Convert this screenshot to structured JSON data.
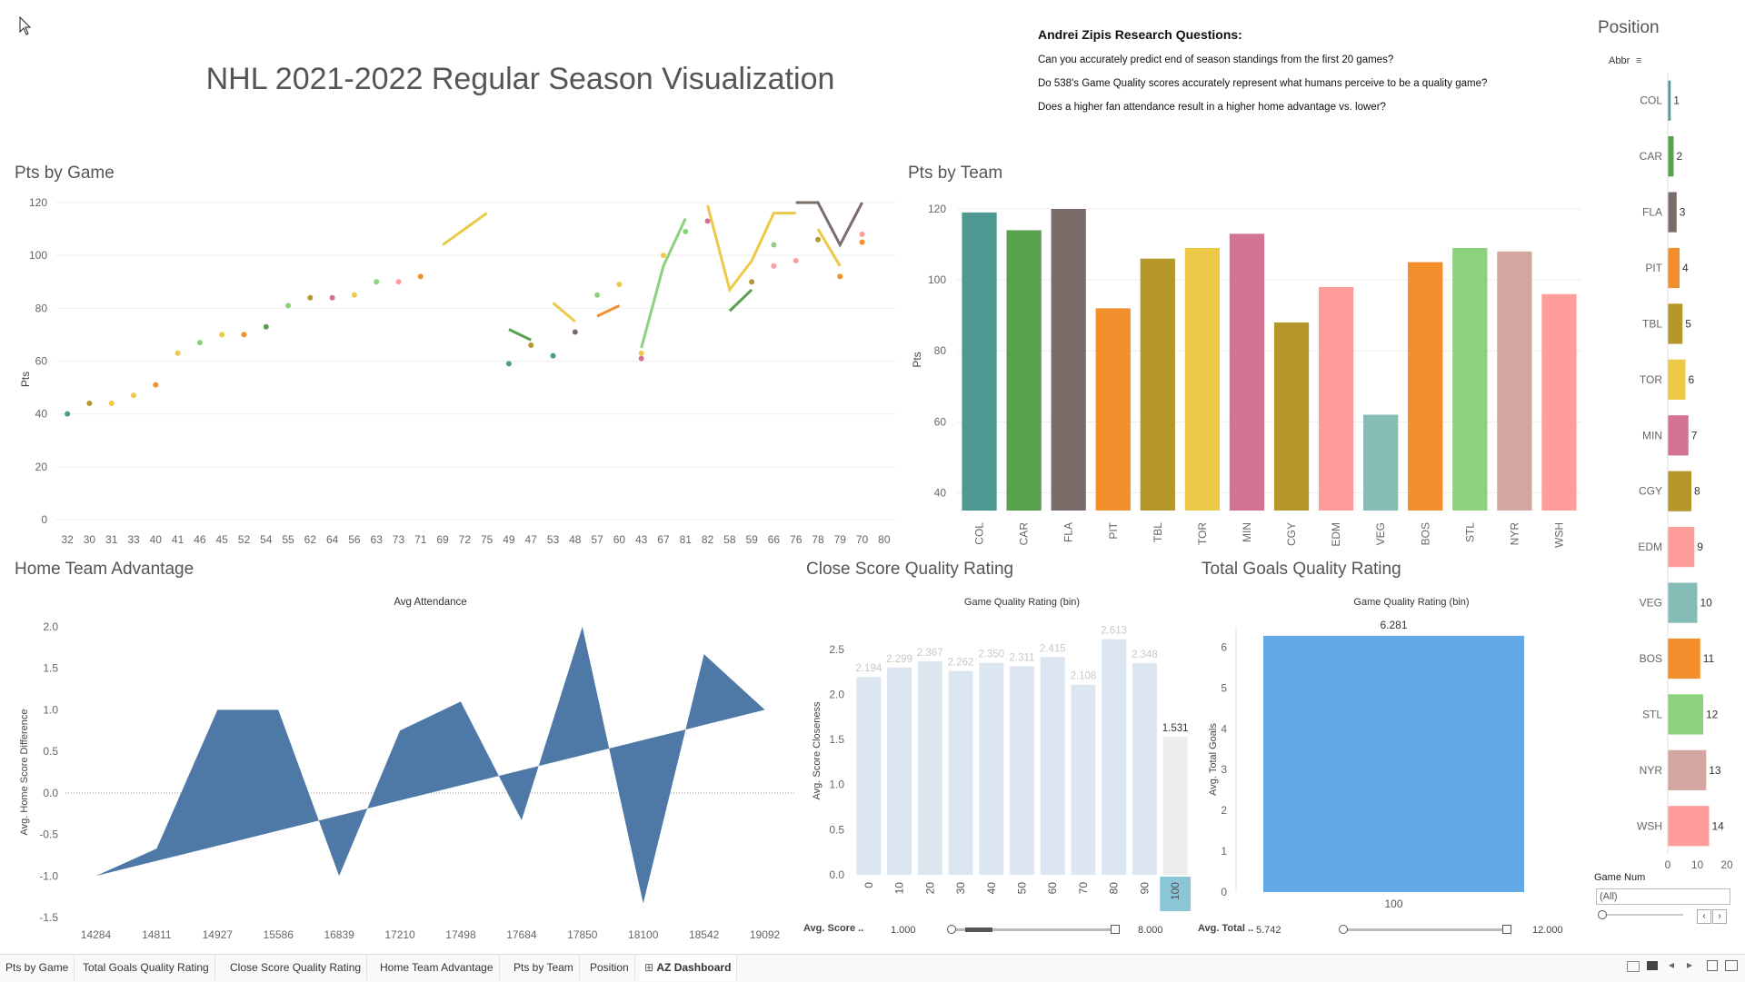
{
  "dashboard_title": "NHL 2021-2022 Regular Season Visualization",
  "research": {
    "heading": "Andrei Zipis Research Questions:",
    "questions": [
      "Can you accurately predict end of season standings from the first 20 games?",
      "Do 538's Game Quality scores accurately represent what humans perceive to be a quality game?",
      "Does a higher fan attendance result in a higher home advantage vs. lower?"
    ]
  },
  "colors": {
    "COL": "#4e9a93",
    "CAR": "#59a14f",
    "FLA": "#7a6d69",
    "PIT": "#f28e2b",
    "TBL": "#b5972c",
    "TOR": "#edc948",
    "MIN": "#d37295",
    "CGY": "#b5972c",
    "EDM": "#ff9d9a",
    "VEG": "#86bcb6",
    "BOS": "#f28e2b",
    "STL": "#8cd17d",
    "NYR": "#d4a6a0",
    "WSH": "#ff9d9a",
    "area": "#4e79a7",
    "bars_light": "#dce6f1",
    "goals_bar": "#63a9e8"
  },
  "chart_data": [
    {
      "id": "pts_by_game",
      "type": "line",
      "title": "Pts by Game",
      "ylabel": "Pts",
      "ylim": [
        0,
        120
      ],
      "yticks": [
        0,
        20,
        40,
        60,
        80,
        100,
        120
      ],
      "categories": [
        "32",
        "30",
        "31",
        "33",
        "40",
        "41",
        "46",
        "45",
        "52",
        "54",
        "55",
        "62",
        "64",
        "56",
        "63",
        "73",
        "71",
        "69",
        "72",
        "75",
        "49",
        "47",
        "53",
        "48",
        "57",
        "60",
        "43",
        "67",
        "81",
        "82",
        "58",
        "59",
        "66",
        "76",
        "78",
        "79",
        "70",
        "80"
      ],
      "series": [
        {
          "team": "COL",
          "points": [
            [
              0,
              40
            ]
          ]
        },
        {
          "team": "CGY",
          "points": [
            [
              1,
              44
            ]
          ]
        },
        {
          "team": "TOR",
          "points": [
            [
              2,
              44
            ]
          ]
        },
        {
          "team": "TOR",
          "points": [
            [
              3,
              47
            ]
          ]
        },
        {
          "team": "PIT",
          "points": [
            [
              4,
              51
            ]
          ]
        },
        {
          "team": "TOR",
          "points": [
            [
              5,
              63
            ]
          ]
        },
        {
          "team": "STL",
          "points": [
            [
              6,
              67
            ]
          ]
        },
        {
          "team": "TOR",
          "points": [
            [
              7,
              70
            ]
          ]
        },
        {
          "team": "PIT",
          "points": [
            [
              8,
              70
            ]
          ]
        },
        {
          "team": "CAR",
          "points": [
            [
              9,
              73
            ]
          ]
        },
        {
          "team": "STL",
          "points": [
            [
              10,
              81
            ]
          ]
        },
        {
          "team": "CGY",
          "points": [
            [
              11,
              84
            ]
          ]
        },
        {
          "team": "MIN",
          "points": [
            [
              12,
              84
            ]
          ]
        },
        {
          "team": "TOR",
          "points": [
            [
              13,
              85
            ]
          ]
        },
        {
          "team": "STL",
          "points": [
            [
              14,
              90
            ]
          ]
        },
        {
          "team": "EDM",
          "points": [
            [
              15,
              90
            ]
          ]
        },
        {
          "team": "PIT",
          "points": [
            [
              16,
              92
            ]
          ]
        },
        {
          "team": "TOR",
          "points": [
            [
              17,
              104
            ],
            [
              19,
              116
            ]
          ]
        },
        {
          "team": "COL",
          "points": [
            [
              20,
              59
            ]
          ]
        },
        {
          "team": "CAR",
          "points": [
            [
              20,
              72
            ],
            [
              21,
              68
            ]
          ]
        },
        {
          "team": "CGY",
          "points": [
            [
              21,
              66
            ]
          ]
        },
        {
          "team": "COL",
          "points": [
            [
              22,
              62
            ]
          ]
        },
        {
          "team": "TOR",
          "points": [
            [
              22,
              82
            ],
            [
              23,
              75
            ]
          ]
        },
        {
          "team": "FLA",
          "points": [
            [
              23,
              71
            ]
          ]
        },
        {
          "team": "STL",
          "points": [
            [
              24,
              85
            ]
          ]
        },
        {
          "team": "PIT",
          "points": [
            [
              24,
              77
            ],
            [
              25,
              81
            ]
          ]
        },
        {
          "team": "TOR",
          "points": [
            [
              25,
              89
            ]
          ]
        },
        {
          "team": "MIN",
          "points": [
            [
              26,
              61
            ]
          ]
        },
        {
          "team": "TOR",
          "points": [
            [
              26,
              63
            ]
          ]
        },
        {
          "team": "STL",
          "points": [
            [
              26,
              65
            ],
            [
              27,
              96
            ],
            [
              28,
              114
            ]
          ]
        },
        {
          "team": "TOR",
          "points": [
            [
              27,
              100
            ]
          ]
        },
        {
          "team": "STL",
          "points": [
            [
              28,
              109
            ]
          ]
        },
        {
          "team": "MIN",
          "points": [
            [
              29,
              113
            ]
          ]
        },
        {
          "team": "TOR",
          "points": [
            [
              29,
              119
            ],
            [
              30,
              87
            ],
            [
              31,
              98
            ],
            [
              32,
              116
            ],
            [
              33,
              116
            ]
          ]
        },
        {
          "team": "CAR",
          "points": [
            [
              30,
              79
            ],
            [
              31,
              87
            ]
          ]
        },
        {
          "team": "CGY",
          "points": [
            [
              31,
              90
            ]
          ]
        },
        {
          "team": "STL",
          "points": [
            [
              32,
              104
            ]
          ]
        },
        {
          "team": "EDM",
          "points": [
            [
              32,
              96
            ]
          ]
        },
        {
          "team": "EDM",
          "points": [
            [
              33,
              98
            ]
          ]
        },
        {
          "team": "FLA",
          "points": [
            [
              33,
              120
            ],
            [
              34,
              120
            ],
            [
              35,
              104
            ],
            [
              36,
              120
            ]
          ]
        },
        {
          "team": "TOR",
          "points": [
            [
              34,
              110
            ],
            [
              35,
              96
            ]
          ]
        },
        {
          "team": "CGY",
          "points": [
            [
              34,
              106
            ]
          ]
        },
        {
          "team": "PIT",
          "points": [
            [
              35,
              92
            ]
          ]
        },
        {
          "team": "PIT",
          "points": [
            [
              36,
              105
            ]
          ]
        },
        {
          "team": "EDM",
          "points": [
            [
              36,
              108
            ]
          ]
        }
      ]
    },
    {
      "id": "pts_by_team",
      "type": "bar",
      "title": "Pts by Team",
      "ylabel": "Pts",
      "ylim": [
        35,
        120
      ],
      "yticks": [
        40,
        60,
        80,
        100,
        120
      ],
      "categories": [
        "COL",
        "CAR",
        "FLA",
        "PIT",
        "TBL",
        "TOR",
        "MIN",
        "CGY",
        "EDM",
        "VEG",
        "BOS",
        "STL",
        "NYR",
        "WSH"
      ],
      "values": [
        119,
        114,
        120,
        92,
        106,
        109,
        113,
        88,
        98,
        62,
        105,
        109,
        108,
        96
      ]
    },
    {
      "id": "home_team_advantage",
      "type": "area",
      "title": "Home Team Advantage",
      "header": "Avg Attendance",
      "ylabel": "Avg. Home Score Difference",
      "ylim": [
        -1.5,
        2.0
      ],
      "yticks": [
        "2.0",
        "1.5",
        "1.0",
        "0.5",
        "0.0",
        "-0.5",
        "-1.0",
        "-1.5"
      ],
      "categories": [
        "14284",
        "14811",
        "14927",
        "15586",
        "16839",
        "17210",
        "17498",
        "17684",
        "17850",
        "18100",
        "18542",
        "19092"
      ],
      "values": [
        -1.0,
        -0.67,
        1.0,
        1.0,
        -1.0,
        0.75,
        1.1,
        -0.33,
        2.0,
        -1.33,
        1.67,
        1.0
      ],
      "trend": [
        -1.0,
        1.0
      ]
    },
    {
      "id": "close_score_quality",
      "type": "bar",
      "title": "Close Score Quality Rating",
      "header": "Game Quality Rating (bin)",
      "ylabel": "Avg. Score Closeness",
      "ylim": [
        0,
        2.75
      ],
      "yticks": [
        "0.0",
        "0.5",
        "1.0",
        "1.5",
        "2.0",
        "2.5"
      ],
      "categories": [
        "0",
        "10",
        "20",
        "30",
        "40",
        "50",
        "60",
        "70",
        "80",
        "90",
        "100"
      ],
      "values": [
        2.194,
        2.299,
        2.367,
        2.262,
        2.35,
        2.311,
        2.415,
        2.108,
        2.613,
        2.348,
        1.531
      ],
      "labels": [
        "2.194",
        "2.299",
        "2.367",
        "2.262",
        "2.350",
        "2.311",
        "2.415",
        "2.108",
        "2.613",
        "2.348",
        "1.531"
      ],
      "highlight": "100"
    },
    {
      "id": "total_goals_quality",
      "type": "bar",
      "title": "Total Goals Quality Rating",
      "header": "Game Quality Rating (bin)",
      "ylabel": "Avg. Total Goals",
      "ylim": [
        0,
        6.5
      ],
      "yticks": [
        "0",
        "1",
        "2",
        "3",
        "4",
        "5",
        "6"
      ],
      "categories": [
        "100"
      ],
      "values": [
        6.281
      ],
      "labels": [
        "6.281"
      ]
    },
    {
      "id": "position",
      "type": "bar",
      "orientation": "horizontal",
      "title": "Position",
      "column_header": "Abbr",
      "categories": [
        "COL",
        "CAR",
        "FLA",
        "PIT",
        "TBL",
        "TOR",
        "MIN",
        "CGY",
        "EDM",
        "VEG",
        "BOS",
        "STL",
        "NYR",
        "WSH"
      ],
      "values": [
        1,
        2,
        3,
        4,
        5,
        6,
        7,
        8,
        9,
        10,
        11,
        12,
        13,
        14
      ],
      "xticks": [
        "0",
        "10",
        "20"
      ],
      "xlim": [
        0,
        20
      ]
    }
  ],
  "sliders": {
    "close": {
      "label": "Avg. Score ..",
      "min": "1.000",
      "max": "8.000"
    },
    "goals": {
      "label": "Avg. Total ..",
      "min": "5.742",
      "max": "12.000"
    }
  },
  "filter": {
    "label": "Game Num",
    "value": "(All)"
  },
  "tabs": [
    "Pts by Game",
    "Total Goals Quality Rating",
    "Close Score Quality Rating",
    "Home Team Advantage",
    "Pts by Team",
    "Position",
    "AZ Dashboard"
  ],
  "active_tab": "AZ Dashboard"
}
